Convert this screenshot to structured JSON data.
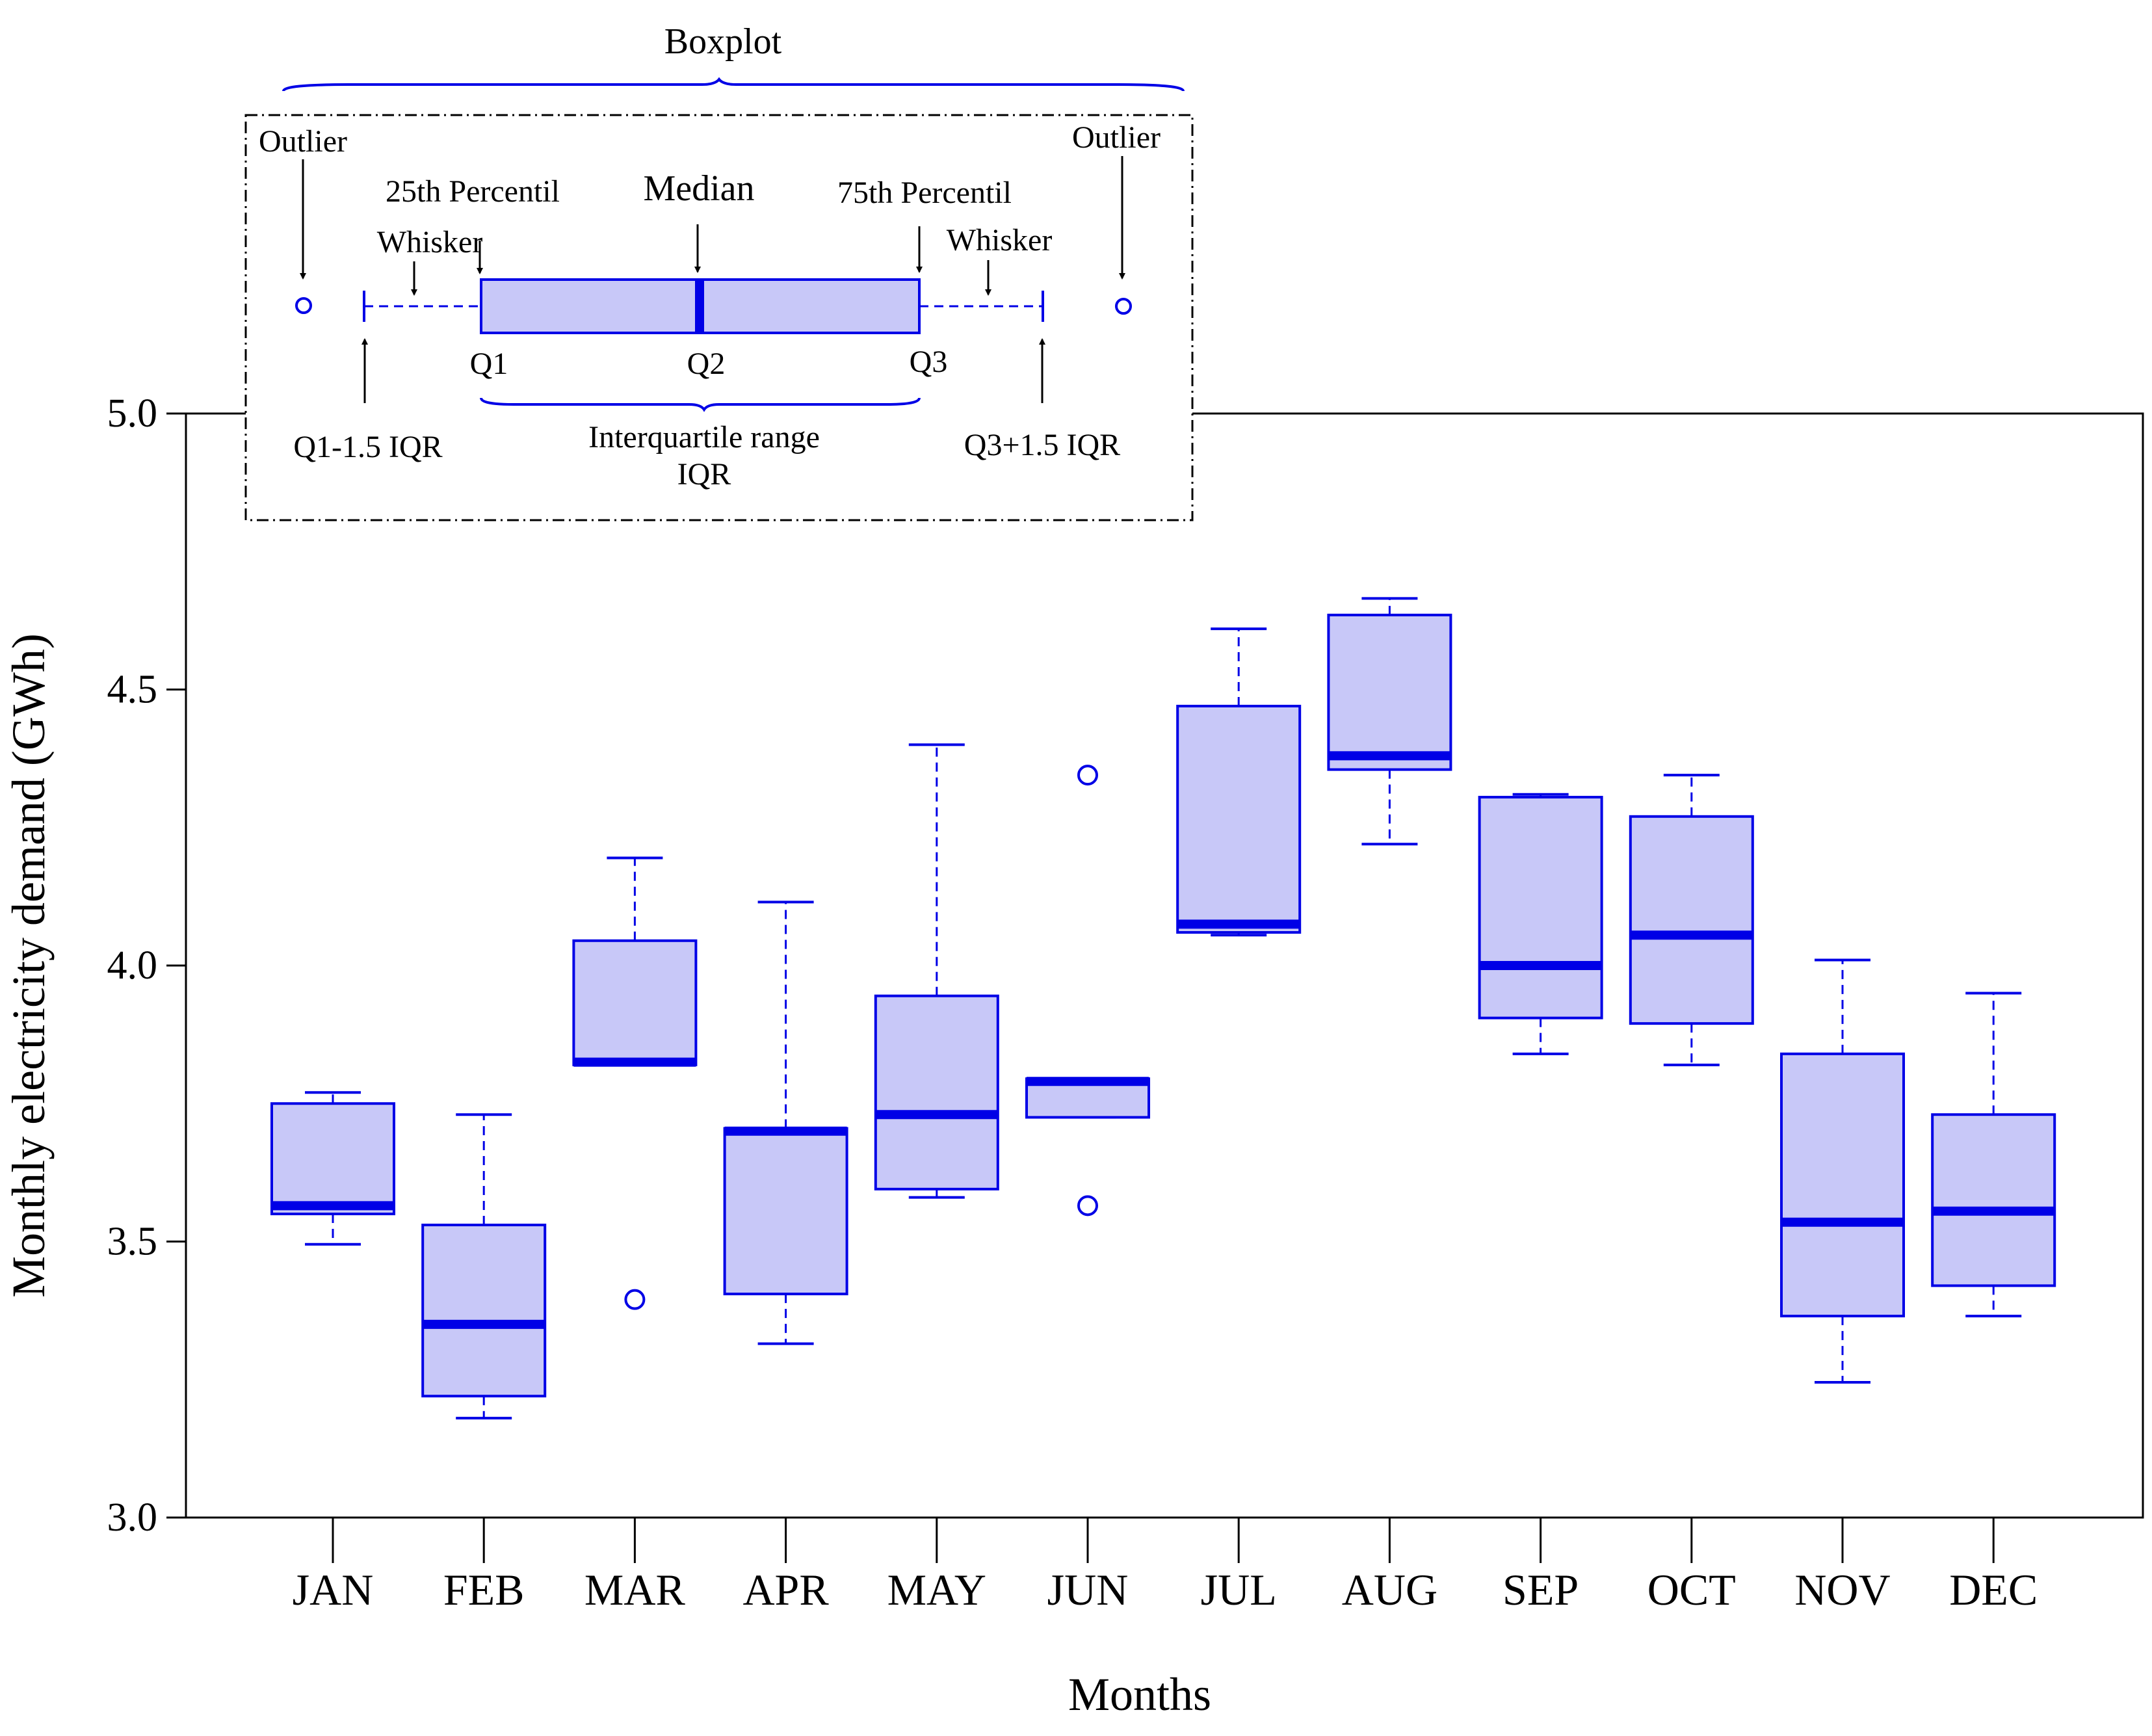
{
  "colors": {
    "box_fill": "#c8c8f8",
    "box_stroke": "#0000e6",
    "axis": "#000000"
  },
  "chart_data": {
    "type": "boxplot",
    "xlabel": "Months",
    "ylabel": "Monthly electricity demand (GWh)",
    "ylim": [
      3.0,
      5.0
    ],
    "yticks": [
      "3.0",
      "3.5",
      "4.0",
      "4.5",
      "5.0"
    ],
    "categories": [
      "JAN",
      "FEB",
      "MAR",
      "APR",
      "MAY",
      "JUN",
      "JUL",
      "AUG",
      "SEP",
      "OCT",
      "NOV",
      "DEC"
    ],
    "boxes": [
      {
        "month": "JAN",
        "whisker_low": 3.495,
        "q1": 3.55,
        "median": 3.565,
        "q3": 3.75,
        "whisker_high": 3.77,
        "outliers": []
      },
      {
        "month": "FEB",
        "whisker_low": 3.18,
        "q1": 3.22,
        "median": 3.35,
        "q3": 3.53,
        "whisker_high": 3.73,
        "outliers": []
      },
      {
        "month": "MAR",
        "whisker_low": 3.82,
        "q1": 3.82,
        "median": 3.825,
        "q3": 4.045,
        "whisker_high": 4.195,
        "outliers": [
          3.395
        ]
      },
      {
        "month": "APR",
        "whisker_low": 3.315,
        "q1": 3.405,
        "median": 3.7,
        "q3": 3.705,
        "whisker_high": 4.115,
        "outliers": []
      },
      {
        "month": "MAY",
        "whisker_low": 3.58,
        "q1": 3.595,
        "median": 3.73,
        "q3": 3.945,
        "whisker_high": 4.4,
        "outliers": []
      },
      {
        "month": "JUN",
        "whisker_low": 3.725,
        "q1": 3.725,
        "median": 3.79,
        "q3": 3.795,
        "whisker_high": 3.795,
        "outliers": [
          3.565,
          4.345
        ]
      },
      {
        "month": "JUL",
        "whisker_low": 4.055,
        "q1": 4.06,
        "median": 4.075,
        "q3": 4.47,
        "whisker_high": 4.61,
        "outliers": []
      },
      {
        "month": "AUG",
        "whisker_low": 4.22,
        "q1": 4.355,
        "median": 4.38,
        "q3": 4.635,
        "whisker_high": 4.665,
        "outliers": []
      },
      {
        "month": "SEP",
        "whisker_low": 3.84,
        "q1": 3.905,
        "median": 4.0,
        "q3": 4.305,
        "whisker_high": 4.31,
        "outliers": []
      },
      {
        "month": "OCT",
        "whisker_low": 3.82,
        "q1": 3.895,
        "median": 4.055,
        "q3": 4.27,
        "whisker_high": 4.345,
        "outliers": []
      },
      {
        "month": "NOV",
        "whisker_low": 3.245,
        "q1": 3.365,
        "median": 3.535,
        "q3": 3.84,
        "whisker_high": 4.01,
        "outliers": []
      },
      {
        "month": "DEC",
        "whisker_low": 3.365,
        "q1": 3.42,
        "median": 3.555,
        "q3": 3.73,
        "whisker_high": 3.95,
        "outliers": []
      }
    ],
    "legend": {
      "title": "Boxplot",
      "outlier_label": "Outlier",
      "whisker_label": "Whisker",
      "p25_label": "25th Percentil",
      "median_label": "Median",
      "p75_label": "75th Percentil",
      "q1_label": "Q1",
      "q2_label": "Q2",
      "q3_label": "Q3",
      "lower_fence_label": "Q1-1.5 IQR",
      "iqr_label_line1": "Interquartile range",
      "iqr_label_line2": "IQR",
      "upper_fence_label": "Q3+1.5 IQR"
    }
  }
}
